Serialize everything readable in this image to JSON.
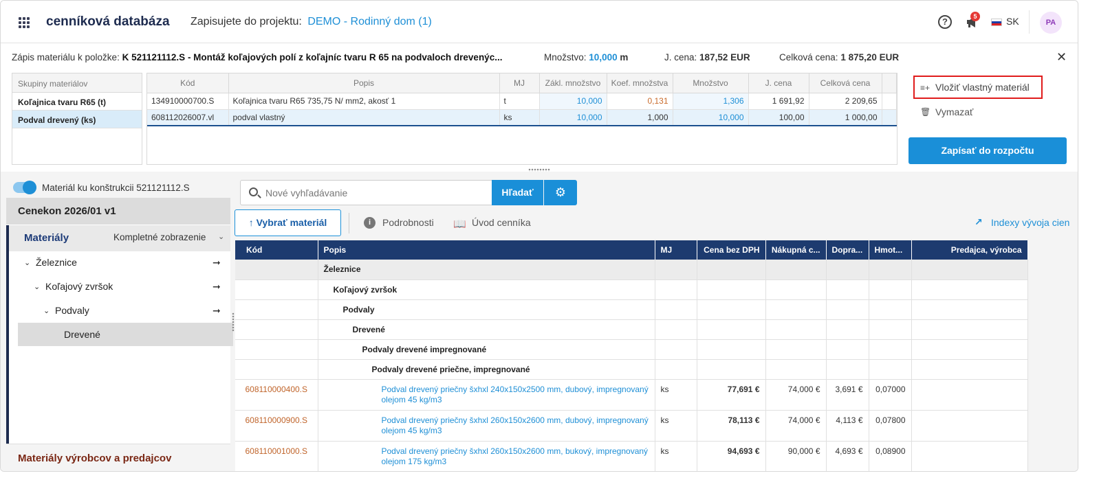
{
  "app": {
    "title": "cenníková databáza",
    "project_label": "Zapisujete do projektu:",
    "project_name": "DEMO - Rodinný dom (1)",
    "help_symbol": "?",
    "notifications_count": "5",
    "language": "SK",
    "user_initials": "PA"
  },
  "item": {
    "label": "Zápis materiálu k položke:",
    "code_desc": "K 521121112.S - Montáž koľajových polí z koľajníc tvaru R 65 na podvaloch drevenýc...",
    "qty_label": "Množstvo:",
    "qty_value": "10,000",
    "qty_unit": "m",
    "unit_price_label": "J. cena:",
    "unit_price_value": "187,52 EUR",
    "total_label": "Celková cena:",
    "total_value": "1 875,20 EUR",
    "close_symbol": "✕"
  },
  "groups": {
    "header": "Skupiny materiálov",
    "rows": [
      "Koľajnica tvaru R65 (t)",
      "Podval drevený (ks)"
    ]
  },
  "materials": {
    "headers": [
      "Kód",
      "Popis",
      "MJ",
      "Zákl. množstvo",
      "Koef. množstva",
      "Množstvo",
      "J. cena",
      "Celková cena"
    ],
    "rows": [
      [
        "134910000700.S",
        "Koľajnica tvaru R65 735,75 N/ mm2, akosť 1",
        "t",
        "10,000",
        "0,131",
        "1,306",
        "1 691,92",
        "2 209,65"
      ],
      [
        "608112026007.vl",
        "podval vlastný",
        "ks",
        "10,000",
        "1,000",
        "10,000",
        "100,00",
        "1 000,00"
      ]
    ]
  },
  "actions": {
    "insert_custom": "Vložiť vlastný materiál",
    "delete": "Vymazať",
    "write_budget": "Zapísať do rozpočtu",
    "insert_icon": "≡+",
    "delete_icon": "🗑"
  },
  "left": {
    "toggle_label": "Materiál ku konštrukcii 521121112.S",
    "catalog": "Cenekon 2026/01 v1",
    "materials_title": "Materiály",
    "view_mode": "Kompletné zobrazenie",
    "chevron": "⌄",
    "tree": [
      {
        "label": "Železnice",
        "arrow": "⌄",
        "go": "➞"
      },
      {
        "label": "Koľajový zvršok",
        "arrow": "⌄",
        "go": "➞"
      },
      {
        "label": "Podvaly",
        "arrow": "⌄",
        "go": "➞"
      },
      {
        "label": "Drevené"
      }
    ],
    "vendors": "Materiály výrobcov a predajcov"
  },
  "search": {
    "placeholder": "Nové vyhľadávanie",
    "button": "Hľadať",
    "gear": "⚙"
  },
  "toolbar": {
    "select": "↑ Vybrať materiál",
    "details": "Podrobnosti",
    "details_icon": "i",
    "intro": "Úvod cenníka",
    "intro_icon": "📖",
    "indexes": "Indexy vývoja cien",
    "indexes_icon": "↗"
  },
  "catalog": {
    "headers": [
      "Kód",
      "Popis",
      "MJ",
      "Cena bez DPH",
      "Nákupná c...",
      "Dopra...",
      "Hmot...",
      "Predajca, výrobca"
    ],
    "groups": [
      "Železnice",
      "Koľajový zvršok",
      "Podvaly",
      "Drevené",
      "Podvaly drevené impregnované",
      "Podvaly drevené priečne, impregnované"
    ],
    "items": [
      {
        "code": "608110000400.S",
        "desc": "Podval drevený priečny šxhxl 240x150x2500 mm, dubový, impregnovaný olejom 45 kg/m3",
        "mj": "ks",
        "price": "77,691 €",
        "buy": "74,000 €",
        "transport": "3,691 €",
        "weight": "0,07000",
        "vendor": ""
      },
      {
        "code": "608110000900.S",
        "desc": "Podval drevený priečny šxhxl 260x150x2600 mm, dubový, impregnovaný olejom 45 kg/m3",
        "mj": "ks",
        "price": "78,113 €",
        "buy": "74,000 €",
        "transport": "4,113 €",
        "weight": "0,07800",
        "vendor": ""
      },
      {
        "code": "608110001000.S",
        "desc": "Podval drevený priečny šxhxl 260x150x2600 mm, bukový, impregnovaný olejom 175 kg/m3",
        "mj": "ks",
        "price": "94,693 €",
        "buy": "90,000 €",
        "transport": "4,693 €",
        "weight": "0,08900",
        "vendor": ""
      }
    ]
  }
}
